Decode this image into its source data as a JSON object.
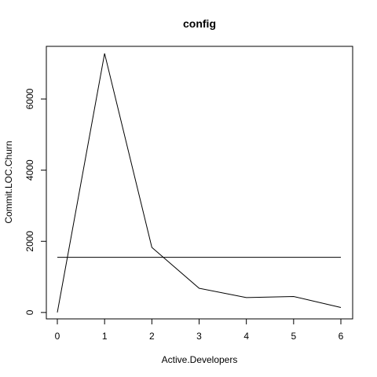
{
  "chart_data": {
    "type": "line",
    "title": "config",
    "xlabel": "Active.Developers",
    "ylabel": "Commit.LOC.Churn",
    "x": [
      0,
      1,
      2,
      3,
      4,
      5,
      6
    ],
    "series": [
      {
        "values": [
          0,
          7280,
          1830,
          680,
          420,
          450,
          140
        ]
      }
    ],
    "reference_line": {
      "y": 1550
    },
    "xlim": [
      0,
      6
    ],
    "ylim": [
      -180,
      7480
    ],
    "xticks": [
      0,
      1,
      2,
      3,
      4,
      5,
      6
    ],
    "yticks": [
      0,
      2000,
      4000,
      6000
    ],
    "grid": false,
    "legend": "none"
  }
}
